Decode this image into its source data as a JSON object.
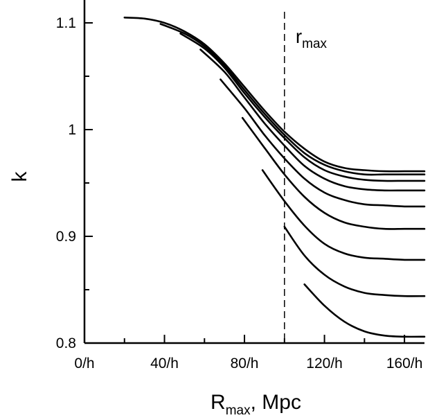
{
  "chart_data": {
    "type": "line",
    "xlabel": "R",
    "xlabel_sub": "max",
    "xlabel_suffix": ", Mpc",
    "ylabel": "k",
    "xlim": [
      0,
      170
    ],
    "ylim": [
      0.8,
      1.12
    ],
    "x_ticks": [
      {
        "value": 0,
        "label": "0/h"
      },
      {
        "value": 40,
        "label": "40/h"
      },
      {
        "value": 80,
        "label": "80/h"
      },
      {
        "value": 120,
        "label": "120/h"
      },
      {
        "value": 160,
        "label": "160/h"
      }
    ],
    "y_ticks": [
      {
        "value": 0.8,
        "label": "0.8"
      },
      {
        "value": 0.9,
        "label": "0.9"
      },
      {
        "value": 1.0,
        "label": "1"
      },
      {
        "value": 1.1,
        "label": "1.1"
      }
    ],
    "y_minor_ticks": [
      0.85,
      0.95,
      1.05
    ],
    "x_minor_ticks": [
      20,
      60,
      100,
      140
    ],
    "vline": {
      "x": 100,
      "label": "r",
      "label_sub": "max"
    },
    "grid": false,
    "series": [
      {
        "x": [
          20,
          30,
          40,
          50,
          60,
          70,
          80,
          90,
          100,
          110,
          120,
          130,
          140,
          150,
          160,
          170
        ],
        "y": [
          1.105,
          1.104,
          1.1,
          1.092,
          1.08,
          1.062,
          1.04,
          1.018,
          0.998,
          0.982,
          0.97,
          0.964,
          0.962,
          0.961,
          0.961,
          0.961
        ]
      },
      {
        "x": [
          38,
          50,
          60,
          70,
          80,
          90,
          100,
          110,
          120,
          130,
          140,
          150,
          160,
          170
        ],
        "y": [
          1.099,
          1.09,
          1.078,
          1.06,
          1.037,
          1.015,
          0.995,
          0.978,
          0.967,
          0.961,
          0.958,
          0.958,
          0.958,
          0.958
        ]
      },
      {
        "x": [
          48,
          60,
          70,
          80,
          90,
          100,
          110,
          120,
          130,
          140,
          150,
          160,
          170
        ],
        "y": [
          1.09,
          1.076,
          1.058,
          1.034,
          1.012,
          0.992,
          0.974,
          0.962,
          0.956,
          0.953,
          0.952,
          0.952,
          0.952
        ]
      },
      {
        "x": [
          58,
          70,
          80,
          90,
          100,
          110,
          120,
          130,
          140,
          150,
          160,
          170
        ],
        "y": [
          1.075,
          1.054,
          1.03,
          1.006,
          0.985,
          0.966,
          0.954,
          0.947,
          0.944,
          0.943,
          0.943,
          0.943
        ]
      },
      {
        "x": [
          68,
          80,
          90,
          100,
          110,
          120,
          130,
          140,
          150,
          160,
          170
        ],
        "y": [
          1.047,
          1.02,
          0.995,
          0.973,
          0.954,
          0.941,
          0.934,
          0.93,
          0.929,
          0.928,
          0.928
        ]
      },
      {
        "x": [
          79,
          90,
          100,
          110,
          120,
          130,
          140,
          150,
          160,
          170
        ],
        "y": [
          1.011,
          0.983,
          0.958,
          0.937,
          0.922,
          0.913,
          0.909,
          0.907,
          0.907,
          0.907
        ]
      },
      {
        "x": [
          89,
          100,
          110,
          120,
          130,
          140,
          150,
          160,
          170
        ],
        "y": [
          0.962,
          0.933,
          0.91,
          0.893,
          0.884,
          0.88,
          0.879,
          0.878,
          0.878
        ]
      },
      {
        "x": [
          100,
          110,
          120,
          130,
          140,
          150,
          160,
          170
        ],
        "y": [
          0.909,
          0.882,
          0.864,
          0.853,
          0.847,
          0.845,
          0.844,
          0.844
        ]
      },
      {
        "x": [
          110,
          120,
          130,
          140,
          150,
          160,
          170
        ],
        "y": [
          0.855,
          0.835,
          0.82,
          0.811,
          0.807,
          0.806,
          0.806
        ]
      }
    ]
  }
}
